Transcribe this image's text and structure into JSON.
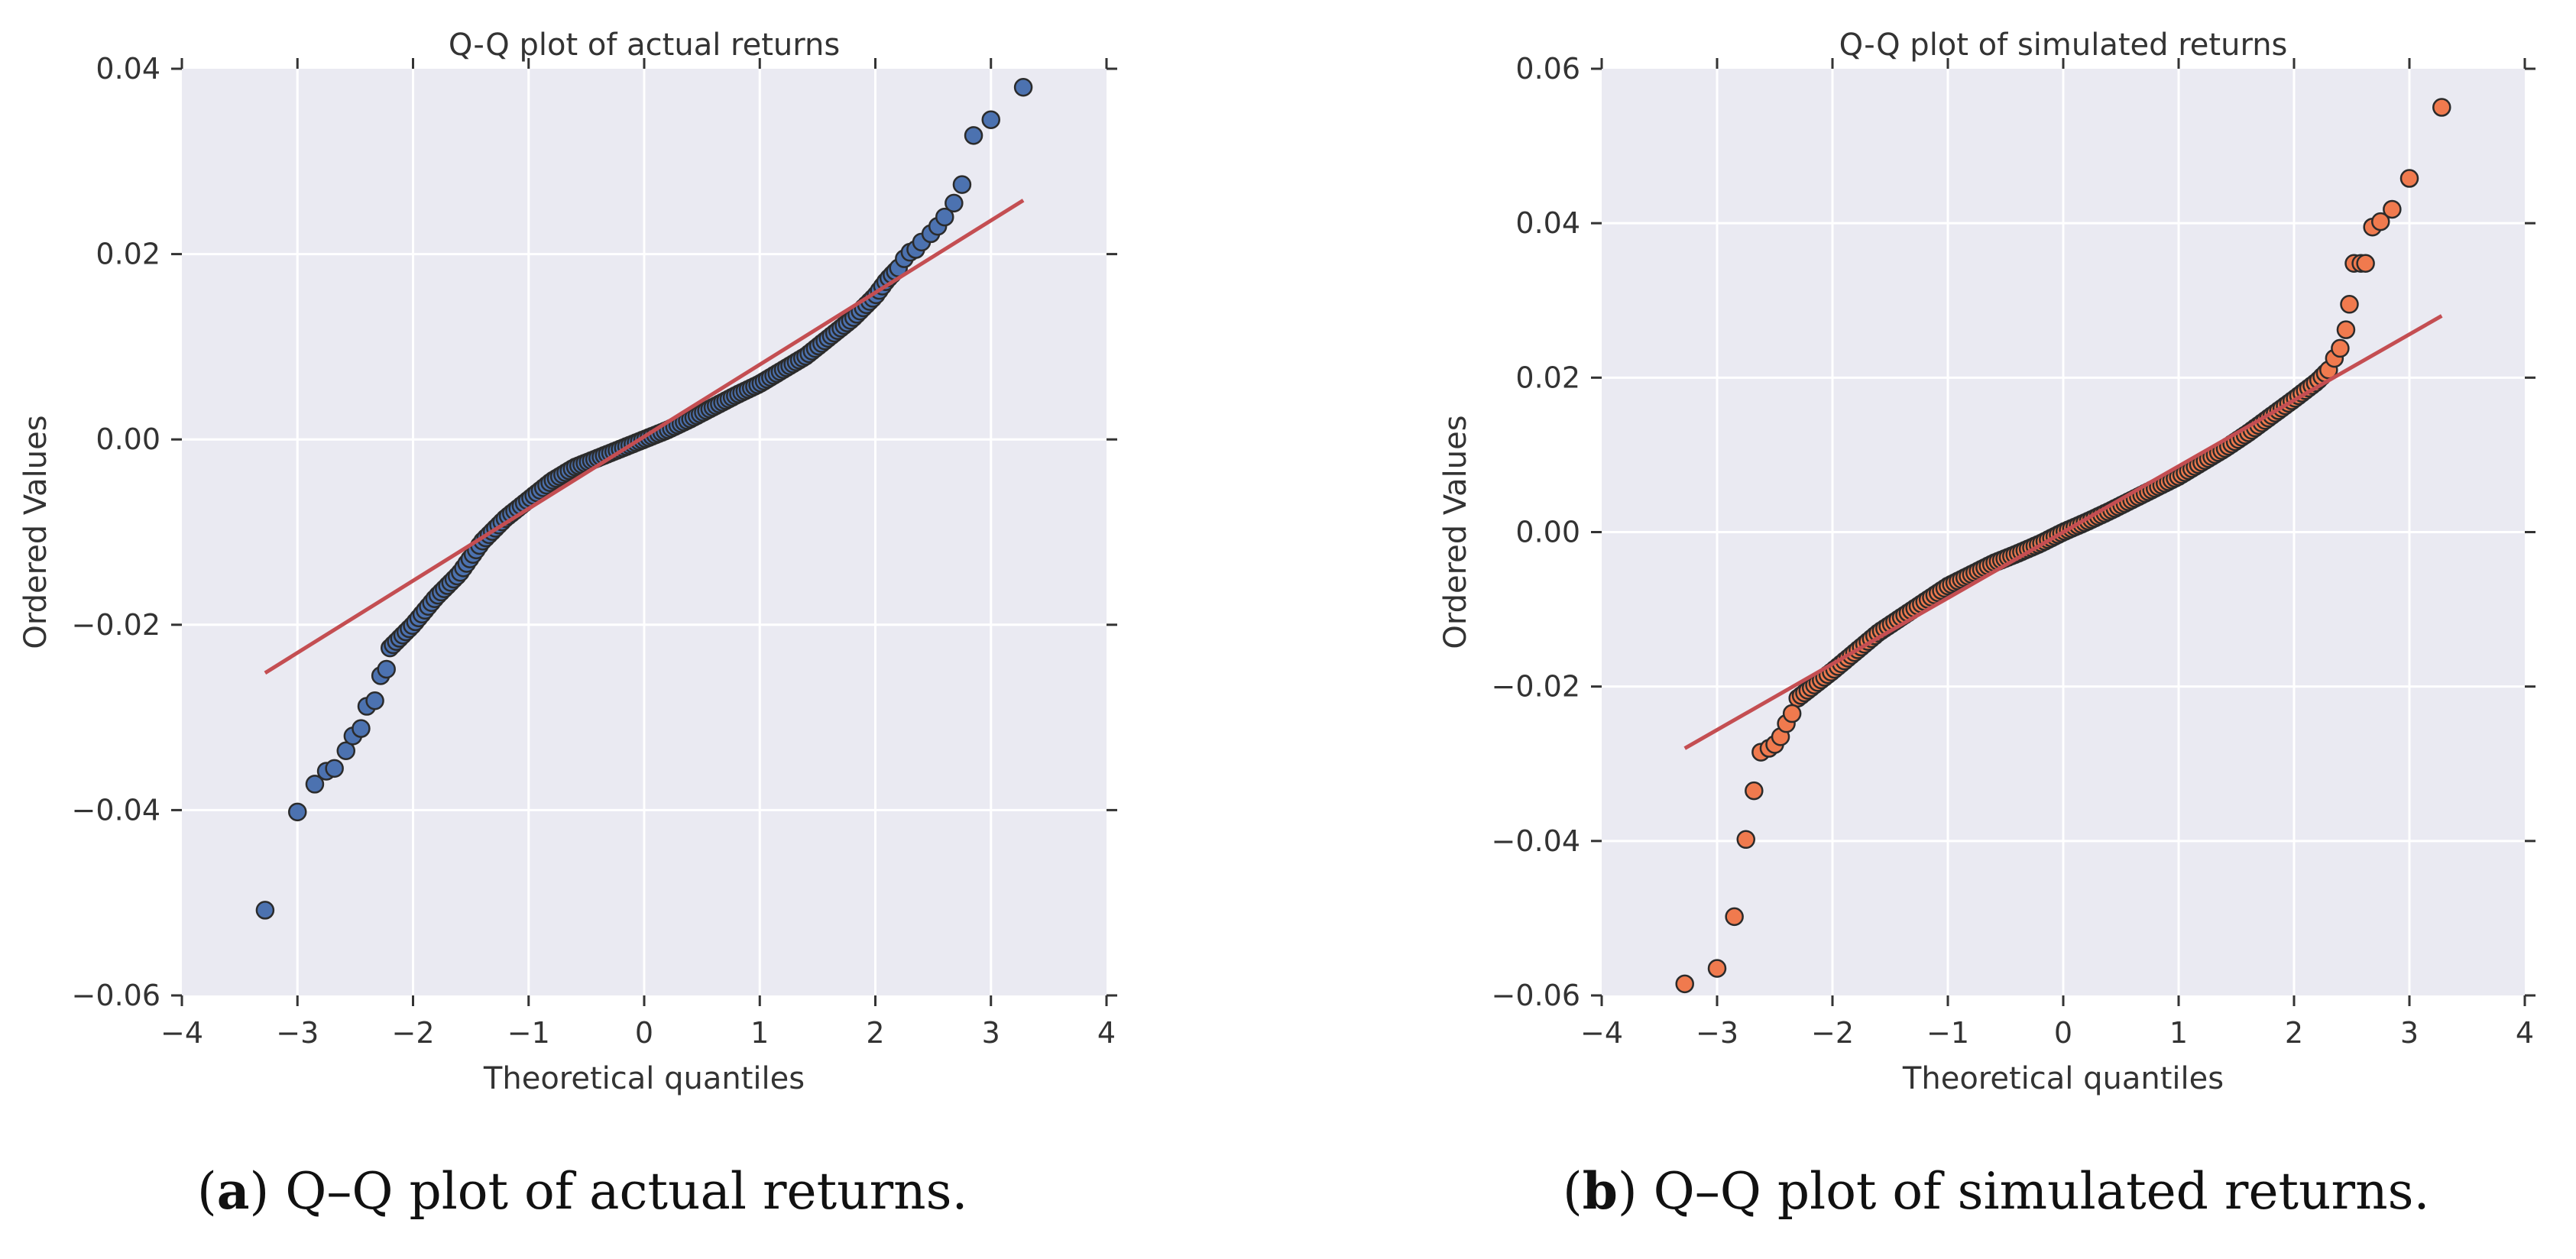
{
  "chart_data": [
    {
      "type": "scatter",
      "title": "Q-Q plot of actual returns",
      "xlabel": "Theoretical quantiles",
      "ylabel": "Ordered Values",
      "xlim": [
        -4,
        4
      ],
      "ylim": [
        -0.06,
        0.04
      ],
      "xticks": [
        -4,
        -3,
        -2,
        -1,
        0,
        1,
        2,
        3,
        4
      ],
      "yticks": [
        -0.06,
        -0.04,
        -0.02,
        0.0,
        0.02,
        0.04
      ],
      "xtick_labels": [
        "−4",
        "−3",
        "−2",
        "−1",
        "0",
        "1",
        "2",
        "3",
        "4"
      ],
      "ytick_labels": [
        "−0.06",
        "−0.04",
        "−0.02",
        "0.00",
        "0.02",
        "0.04"
      ],
      "grid": true,
      "marker_color": "#4c72b0",
      "line_color": "#c44e52",
      "fit_line": {
        "x": [
          -3.28,
          3.28
        ],
        "y": [
          -0.0252,
          0.0258
        ]
      },
      "tail_points": {
        "x": [
          -3.28,
          -3.0,
          -2.85,
          -2.75,
          -2.68,
          -2.58,
          -2.52,
          -2.45,
          -2.4,
          -2.33,
          -2.28,
          -2.23,
          2.25,
          2.3,
          2.35,
          2.4,
          2.48,
          2.54,
          2.6,
          2.68,
          2.75,
          2.85,
          3.0,
          3.28
        ],
        "y": [
          -0.0508,
          -0.0402,
          -0.0372,
          -0.0358,
          -0.0355,
          -0.0336,
          -0.032,
          -0.0312,
          -0.0288,
          -0.0282,
          -0.0255,
          -0.0248,
          0.0195,
          0.0202,
          0.0205,
          0.0213,
          0.0222,
          0.023,
          0.024,
          0.0255,
          0.0275,
          0.0328,
          0.0345,
          0.038
        ]
      },
      "body_curve": {
        "x": [
          -2.2,
          -2.0,
          -1.8,
          -1.6,
          -1.4,
          -1.2,
          -1.0,
          -0.8,
          -0.6,
          -0.4,
          -0.2,
          0.0,
          0.2,
          0.4,
          0.6,
          0.8,
          1.0,
          1.2,
          1.4,
          1.6,
          1.8,
          2.0,
          2.1,
          2.2
        ],
        "y": [
          -0.0225,
          -0.02,
          -0.017,
          -0.0145,
          -0.011,
          -0.0085,
          -0.0065,
          -0.0045,
          -0.003,
          -0.002,
          -0.001,
          0.0,
          0.001,
          0.0022,
          0.0035,
          0.0048,
          0.006,
          0.0075,
          0.009,
          0.011,
          0.013,
          0.0155,
          0.0172,
          0.0185
        ]
      },
      "body_points": 160
    },
    {
      "type": "scatter",
      "title": "Q-Q plot of simulated returns",
      "xlabel": "Theoretical quantiles",
      "ylabel": "Ordered Values",
      "xlim": [
        -4,
        4
      ],
      "ylim": [
        -0.06,
        0.06
      ],
      "xticks": [
        -4,
        -3,
        -2,
        -1,
        0,
        1,
        2,
        3,
        4
      ],
      "yticks": [
        -0.06,
        -0.04,
        -0.02,
        0.0,
        0.02,
        0.04,
        0.06
      ],
      "xtick_labels": [
        "−4",
        "−3",
        "−2",
        "−1",
        "0",
        "1",
        "2",
        "3",
        "4"
      ],
      "ytick_labels": [
        "−0.06",
        "−0.04",
        "−0.02",
        "0.00",
        "0.02",
        "0.04",
        "0.06"
      ],
      "grid": true,
      "marker_color": "#f07a4e",
      "line_color": "#c44e52",
      "fit_line": {
        "x": [
          -3.28,
          3.28
        ],
        "y": [
          -0.028,
          0.028
        ]
      },
      "tail_points": {
        "x": [
          -3.28,
          -3.0,
          -2.85,
          -2.75,
          -2.68,
          -2.62,
          -2.55,
          -2.5,
          -2.45,
          -2.4,
          -2.35,
          2.35,
          2.4,
          2.45,
          2.48,
          2.52,
          2.58,
          2.62,
          2.68,
          2.75,
          2.85,
          3.0,
          3.28
        ],
        "y": [
          -0.0585,
          -0.0565,
          -0.0498,
          -0.0398,
          -0.0335,
          -0.0285,
          -0.028,
          -0.0275,
          -0.0265,
          -0.0248,
          -0.0235,
          0.0225,
          0.0238,
          0.0262,
          0.0295,
          0.0348,
          0.0348,
          0.0348,
          0.0395,
          0.0402,
          0.0418,
          0.0458,
          0.055
        ]
      },
      "body_curve": {
        "x": [
          -2.3,
          -2.0,
          -1.8,
          -1.6,
          -1.4,
          -1.2,
          -1.0,
          -0.8,
          -0.6,
          -0.4,
          -0.2,
          0.0,
          0.2,
          0.4,
          0.6,
          0.8,
          1.0,
          1.2,
          1.4,
          1.6,
          1.8,
          2.0,
          2.2,
          2.3
        ],
        "y": [
          -0.0215,
          -0.018,
          -0.0155,
          -0.013,
          -0.011,
          -0.009,
          -0.007,
          -0.0055,
          -0.004,
          -0.0028,
          -0.0015,
          0.0,
          0.0013,
          0.0027,
          0.0042,
          0.0057,
          0.0072,
          0.009,
          0.0108,
          0.0128,
          0.015,
          0.0172,
          0.0195,
          0.021
        ]
      },
      "body_points": 160
    }
  ],
  "captions": {
    "a_label": "a",
    "a_text": " Q–Q plot of actual returns.",
    "b_label": "b",
    "b_text": " Q–Q plot of simulated returns."
  }
}
